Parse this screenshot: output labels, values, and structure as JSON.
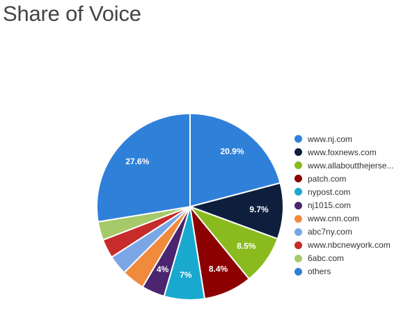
{
  "title": "Share of Voice",
  "chart_data": {
    "type": "pie",
    "title": "Share of Voice",
    "legend_position": "right",
    "slices": [
      {
        "label": "www.nj.com",
        "legend_label": "www.nj.com",
        "value": 20.9,
        "value_label": "20.9%",
        "color": "#2f80d9"
      },
      {
        "label": "www.foxnews.com",
        "legend_label": "www.foxnews.com",
        "value": 9.7,
        "value_label": "9.7%",
        "color": "#0e1f3e"
      },
      {
        "label": "www.allaboutthejersey...",
        "legend_label": "www.allaboutthejerse...",
        "value": 8.5,
        "value_label": "8.5%",
        "color": "#8abb1e"
      },
      {
        "label": "patch.com",
        "legend_label": "patch.com",
        "value": 8.4,
        "value_label": "8.4%",
        "color": "#8c0000"
      },
      {
        "label": "nypost.com",
        "legend_label": "nypost.com",
        "value": 7.0,
        "value_label": "7%",
        "color": "#19a9cf"
      },
      {
        "label": "nj1015.com",
        "legend_label": "nj1015.com",
        "value": 4.0,
        "value_label": "4%",
        "color": "#4b2570"
      },
      {
        "label": "www.cnn.com",
        "legend_label": "www.cnn.com",
        "value": 4.0,
        "value_label": "",
        "color": "#f08a3c"
      },
      {
        "label": "abc7ny.com",
        "legend_label": "abc7ny.com",
        "value": 3.4,
        "value_label": "",
        "color": "#7aa6e6"
      },
      {
        "label": "www.nbcnewyork.com",
        "legend_label": "www.nbcnewyork.com",
        "value": 3.3,
        "value_label": "",
        "color": "#c72b2b"
      },
      {
        "label": "6abc.com",
        "legend_label": "6abc.com",
        "value": 3.2,
        "value_label": "",
        "color": "#a6c96a"
      },
      {
        "label": "others",
        "legend_label": "others",
        "value": 27.6,
        "value_label": "27.6%",
        "color": "#2f80d9"
      }
    ]
  }
}
